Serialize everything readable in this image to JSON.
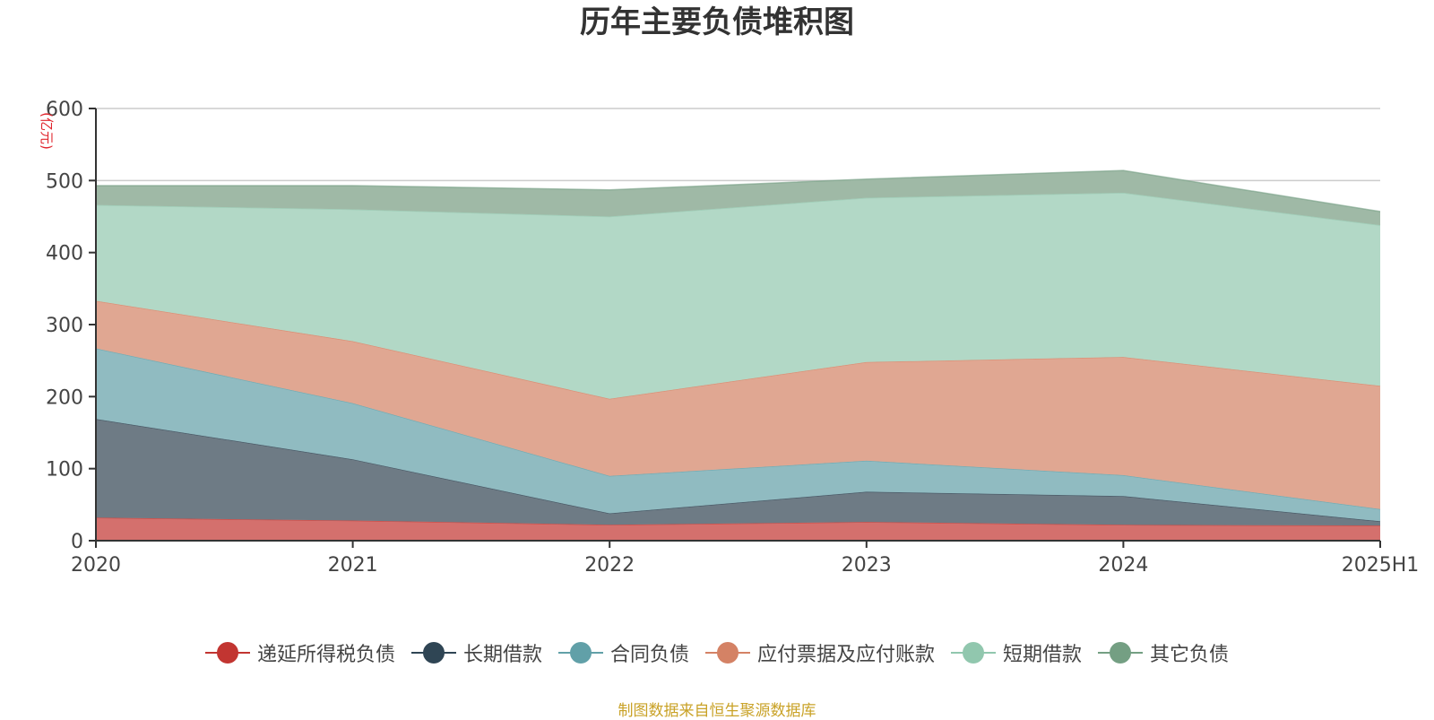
{
  "chart_data": {
    "type": "area",
    "stacked": true,
    "title": "历年主要负债堆积图",
    "unit_label": "(亿元)",
    "categories": [
      "2020",
      "2021",
      "2022",
      "2023",
      "2024",
      "2025H1"
    ],
    "ylim": [
      0,
      600
    ],
    "yticks": [
      0,
      100,
      200,
      300,
      400,
      500,
      600
    ],
    "grid": true,
    "legend_position": "bottom",
    "series": [
      {
        "name": "递延所得税负债",
        "color": "#c23531",
        "area_color": "#d4706d",
        "values": [
          32,
          28,
          22,
          26,
          22,
          21
        ]
      },
      {
        "name": "长期借款",
        "color": "#2f4554",
        "area_color": "#6e7b85",
        "values": [
          137,
          85,
          16,
          42,
          40,
          6
        ]
      },
      {
        "name": "合同负债",
        "color": "#61a0a8",
        "area_color": "#90bbc1",
        "values": [
          98,
          78,
          52,
          43,
          29,
          17
        ]
      },
      {
        "name": "应付票据及应付账款",
        "color": "#d48265",
        "area_color": "#e0a792",
        "values": [
          66,
          86,
          107,
          137,
          164,
          171
        ]
      },
      {
        "name": "短期借款",
        "color": "#91c7ae",
        "area_color": "#b2d8c6",
        "values": [
          133,
          183,
          253,
          228,
          228,
          223
        ]
      },
      {
        "name": "其它负债",
        "color": "#749f83",
        "area_color": "#9fb9a6",
        "values": [
          27,
          33,
          37,
          26,
          31,
          19
        ]
      }
    ]
  },
  "source_note": "制图数据来自恒生聚源数据库"
}
